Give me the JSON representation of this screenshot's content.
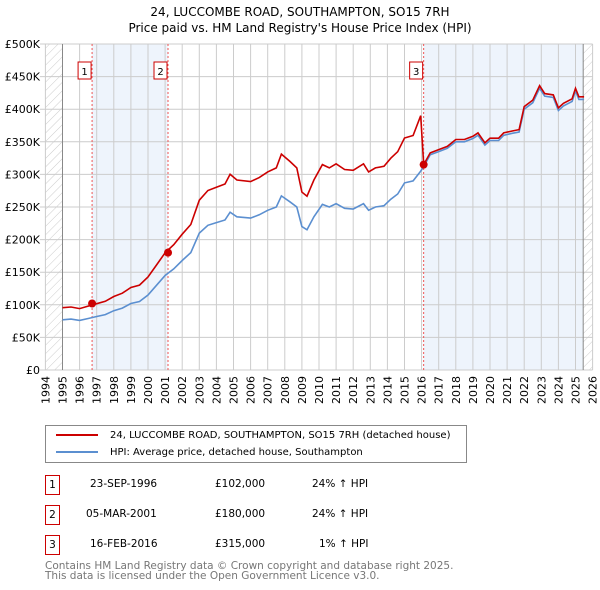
{
  "chart_data": {
    "type": "line",
    "title": "24, LUCCOMBE ROAD, SOUTHAMPTON, SO15 7RH",
    "subtitle": "Price paid vs. HM Land Registry's House Price Index (HPI)",
    "xlim": [
      1994,
      2026
    ],
    "ylim": [
      0,
      500000
    ],
    "x_ticks": [
      "1994",
      "1995",
      "1996",
      "1997",
      "1998",
      "1999",
      "2000",
      "2001",
      "2002",
      "2003",
      "2004",
      "2005",
      "2006",
      "2007",
      "2008",
      "2009",
      "2010",
      "2011",
      "2012",
      "2013",
      "2014",
      "2015",
      "2016",
      "2017",
      "2018",
      "2019",
      "2020",
      "2021",
      "2022",
      "2023",
      "2024",
      "2025",
      "2026"
    ],
    "y_ticks": [
      {
        "v": 0,
        "l": "£0"
      },
      {
        "v": 50000,
        "l": "£50K"
      },
      {
        "v": 100000,
        "l": "£100K"
      },
      {
        "v": 150000,
        "l": "£150K"
      },
      {
        "v": 200000,
        "l": "£200K"
      },
      {
        "v": 250000,
        "l": "£250K"
      },
      {
        "v": 300000,
        "l": "£300K"
      },
      {
        "v": 350000,
        "l": "£350K"
      },
      {
        "v": 400000,
        "l": "£400K"
      },
      {
        "v": 450000,
        "l": "£450K"
      },
      {
        "v": 500000,
        "l": "£500K"
      }
    ],
    "grid": true,
    "x": [
      1995.0,
      1995.5,
      1996.0,
      1996.5,
      1997.0,
      1997.5,
      1998.0,
      1998.5,
      1999.0,
      1999.5,
      2000.0,
      2000.5,
      2001.0,
      2001.5,
      2002.0,
      2002.5,
      2003.0,
      2003.5,
      2004.0,
      2004.5,
      2004.8,
      2005.2,
      2006.0,
      2006.5,
      2007.0,
      2007.5,
      2007.8,
      2008.3,
      2008.7,
      2009.0,
      2009.3,
      2009.7,
      2010.2,
      2010.6,
      2011.0,
      2011.5,
      2012.0,
      2012.6,
      2012.9,
      2013.3,
      2013.8,
      2014.2,
      2014.6,
      2015.0,
      2015.5,
      2015.95,
      2016.12,
      2016.5,
      2017.0,
      2017.5,
      2018.0,
      2018.5,
      2019.0,
      2019.3,
      2019.7,
      2020.0,
      2020.5,
      2020.8,
      2021.3,
      2021.7,
      2022.0,
      2022.5,
      2022.9,
      2023.2,
      2023.7,
      2024.0,
      2024.3,
      2024.8,
      2025.0,
      2025.2,
      2025.5
    ],
    "series": [
      {
        "name": "24, LUCCOMBE ROAD, SOUTHAMPTON, SO15 7RH (detached house)",
        "color": "#cc0000",
        "values": [
          95500,
          96700,
          94200,
          98000,
          101700,
          105400,
          112800,
          117800,
          126500,
          130200,
          142600,
          161200,
          179800,
          192200,
          208300,
          223200,
          260400,
          275300,
          280200,
          285200,
          300100,
          291400,
          288900,
          295100,
          303800,
          310000,
          331100,
          319900,
          310000,
          272800,
          266600,
          291400,
          315000,
          310000,
          316200,
          307500,
          306300,
          316200,
          303800,
          310000,
          312500,
          324900,
          334800,
          355900,
          359600,
          390000,
          315000,
          333000,
          338000,
          343000,
          353500,
          353500,
          358500,
          363600,
          348500,
          355500,
          355500,
          363600,
          366600,
          368700,
          404000,
          414000,
          436000,
          424000,
          422000,
          402000,
          409000,
          416000,
          432000,
          419000,
          419000
        ]
      },
      {
        "name": "HPI: Average price, detached house, Southampton",
        "color": "#5b8fd0",
        "values": [
          77000,
          78000,
          76000,
          79000,
          82000,
          85000,
          91000,
          95000,
          102000,
          105000,
          115000,
          130000,
          145000,
          155000,
          168000,
          180000,
          210000,
          222000,
          226000,
          230000,
          242000,
          235000,
          233000,
          238000,
          245000,
          250000,
          267000,
          258000,
          250000,
          220000,
          215000,
          235000,
          254000,
          250000,
          255000,
          248000,
          247000,
          255000,
          245000,
          250000,
          252000,
          262000,
          270000,
          287000,
          290000,
          305000,
          312000,
          330000,
          335000,
          340000,
          350000,
          350000,
          355000,
          360000,
          345000,
          352000,
          352000,
          360000,
          363000,
          365000,
          400000,
          410000,
          432000,
          420000,
          418000,
          398000,
          405000,
          412000,
          428000,
          415000,
          415000
        ]
      }
    ],
    "sales": [
      {
        "label": "1",
        "x": 1996.73,
        "price": 102000,
        "date": "23-SEP-1996",
        "price_text": "£102,000",
        "hpi": "24% ↑ HPI"
      },
      {
        "label": "2",
        "x": 2001.17,
        "price": 180000,
        "date": "05-MAR-2001",
        "price_text": "£180,000",
        "hpi": "24% ↑ HPI"
      },
      {
        "label": "3",
        "x": 2016.12,
        "price": 315000,
        "date": "16-FEB-2016",
        "price_text": "£315,000",
        "hpi": "1% ↑ HPI"
      }
    ],
    "hatch_ranges": [
      [
        1994,
        1995
      ],
      [
        2025.45,
        2026
      ]
    ],
    "legend_position": "bottom"
  },
  "footer": {
    "line1": "Contains HM Land Registry data © Crown copyright and database right 2025.",
    "line2": "This data is licensed under the Open Government Licence v3.0."
  }
}
